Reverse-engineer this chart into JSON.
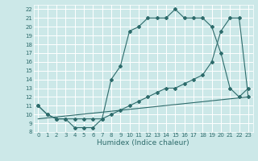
{
  "xlabel": "Humidex (Indice chaleur)",
  "bg_color": "#cce8e8",
  "grid_color": "#ffffff",
  "line_color": "#2d6b6b",
  "xlim": [
    -0.5,
    23.5
  ],
  "ylim": [
    8,
    22.5
  ],
  "xticks": [
    0,
    1,
    2,
    3,
    4,
    5,
    6,
    7,
    8,
    9,
    10,
    11,
    12,
    13,
    14,
    15,
    16,
    17,
    18,
    19,
    20,
    21,
    22,
    23
  ],
  "yticks": [
    8,
    9,
    10,
    11,
    12,
    13,
    14,
    15,
    16,
    17,
    18,
    19,
    20,
    21,
    22
  ],
  "line1_x": [
    0,
    1,
    2,
    3,
    4,
    5,
    6,
    7,
    8,
    9,
    10,
    11,
    12,
    13,
    14,
    15,
    16,
    17,
    18,
    19,
    20,
    21,
    22,
    23
  ],
  "line1_y": [
    11,
    10,
    9.5,
    9.5,
    8.5,
    8.5,
    8.5,
    9.5,
    14,
    15.5,
    19.5,
    20,
    21,
    21,
    21,
    22,
    21,
    21,
    21,
    20,
    17,
    13,
    12,
    13
  ],
  "line2_x": [
    0,
    1,
    2,
    3,
    4,
    5,
    6,
    7,
    8,
    9,
    10,
    11,
    12,
    13,
    14,
    15,
    16,
    17,
    18,
    19,
    20,
    21,
    22,
    23
  ],
  "line2_y": [
    11,
    10,
    9.5,
    9.5,
    9.5,
    9.5,
    9.5,
    9.5,
    10,
    10.5,
    11,
    11.5,
    12,
    12.5,
    13,
    13,
    13.5,
    14,
    14.5,
    16,
    19.5,
    21,
    21,
    12
  ],
  "line3_x": [
    0,
    23
  ],
  "line3_y": [
    9.5,
    12
  ],
  "xlabel_fontsize": 6.5,
  "tick_fontsize": 5.0
}
